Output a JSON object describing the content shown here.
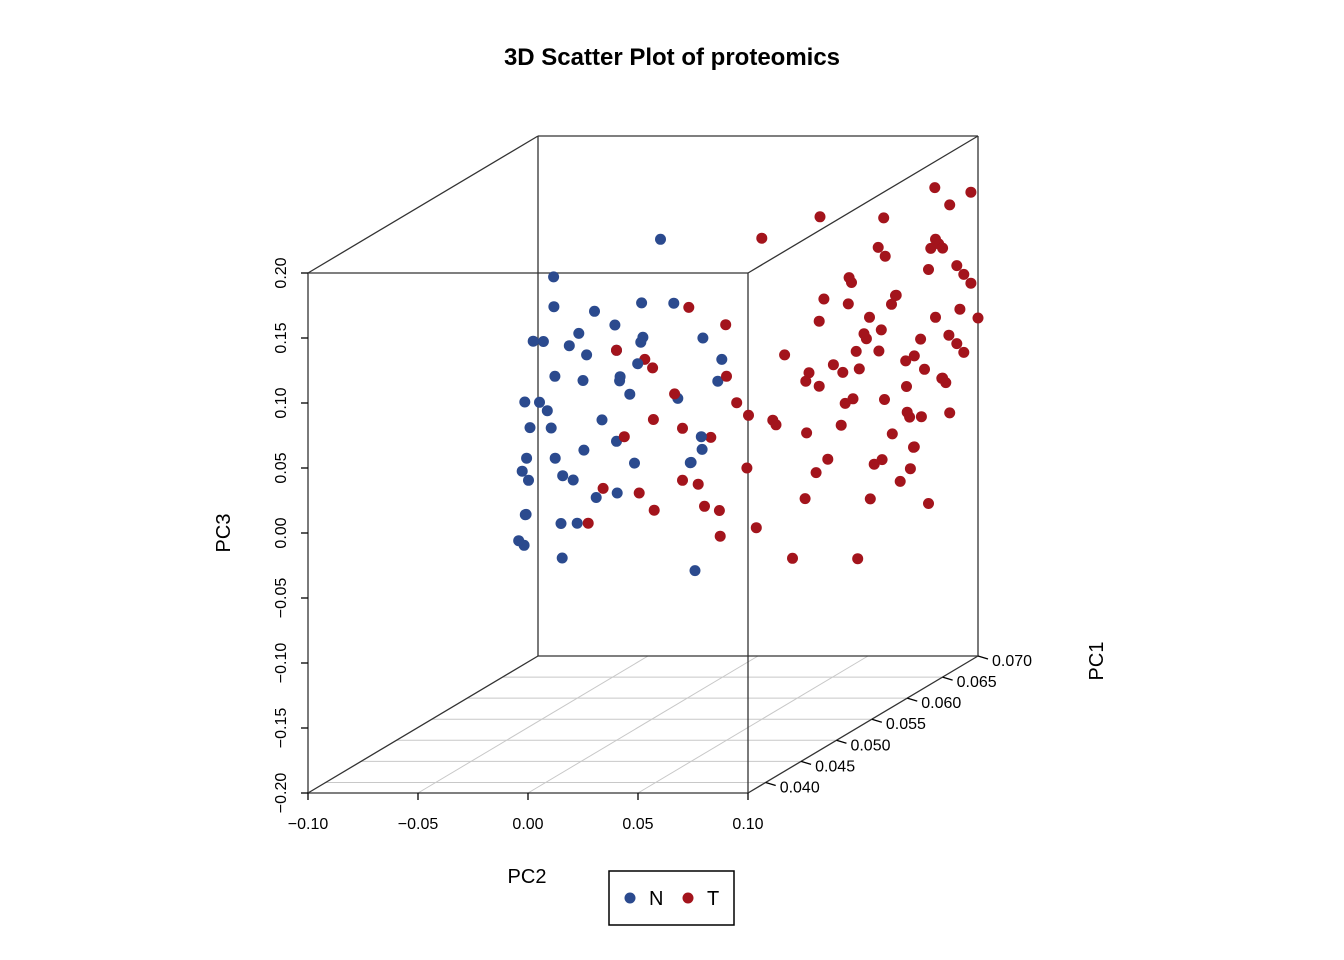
{
  "chart_data": {
    "type": "scatter",
    "title": "3D Scatter Plot of proteomics",
    "xlabel": "PC2",
    "ylabel": "PC1",
    "zlabel": "PC3",
    "xlim": [
      -0.1,
      0.1
    ],
    "ylim": [
      0.0375,
      0.07
    ],
    "zlim": [
      -0.2,
      0.2
    ],
    "x_ticks": [
      "−0.10",
      "−0.05",
      "0.00",
      "0.05",
      "0.10"
    ],
    "x_tick_values": [
      -0.1,
      -0.05,
      0.0,
      0.05,
      0.1
    ],
    "y_ticks": [
      "0.040",
      "0.045",
      "0.050",
      "0.055",
      "0.060",
      "0.065",
      "0.070"
    ],
    "y_tick_values": [
      0.04,
      0.045,
      0.05,
      0.055,
      0.06,
      0.065,
      0.07
    ],
    "z_ticks": [
      "−0.20",
      "−0.15",
      "−0.10",
      "−0.05",
      "0.00",
      "0.05",
      "0.10",
      "0.15",
      "0.20"
    ],
    "z_tick_values": [
      -0.2,
      -0.15,
      -0.1,
      -0.05,
      0.0,
      0.05,
      0.1,
      0.15,
      0.2
    ],
    "grid": "floor",
    "legend_position": "bottom-center",
    "series": [
      {
        "name": "N",
        "color": "#2b4a8e",
        "points": [
          [
            -0.025,
            0.064,
            0.14
          ],
          [
            -0.02,
            0.056,
            0.1
          ],
          [
            -0.035,
            0.052,
            0.15
          ],
          [
            -0.03,
            0.049,
            0.11
          ],
          [
            -0.028,
            0.05,
            0.08
          ],
          [
            -0.025,
            0.048,
            0.06
          ],
          [
            -0.02,
            0.047,
            0.05
          ],
          [
            -0.015,
            0.046,
            0.03
          ],
          [
            -0.04,
            0.05,
            0.0
          ],
          [
            -0.035,
            0.048,
            -0.02
          ],
          [
            -0.03,
            0.046,
            0.02
          ],
          [
            -0.025,
            0.045,
            -0.01
          ],
          [
            -0.042,
            0.05,
            -0.05
          ],
          [
            -0.038,
            0.048,
            -0.04
          ],
          [
            -0.022,
            0.049,
            -0.03
          ],
          [
            -0.018,
            0.048,
            0.01
          ],
          [
            -0.013,
            0.052,
            0.04
          ],
          [
            -0.01,
            0.055,
            0.05
          ],
          [
            -0.005,
            0.052,
            0.07
          ],
          [
            -0.005,
            0.055,
            0.09
          ],
          [
            0.0,
            0.05,
            0.1
          ],
          [
            0.005,
            0.052,
            0.13
          ],
          [
            0.01,
            0.055,
            0.12
          ],
          [
            0.02,
            0.056,
            0.09
          ],
          [
            0.03,
            0.055,
            0.06
          ],
          [
            0.035,
            0.054,
            0.08
          ],
          [
            0.04,
            0.048,
            0.02
          ],
          [
            0.045,
            0.048,
            0.04
          ],
          [
            0.05,
            0.045,
            0.03
          ],
          [
            0.055,
            0.045,
            0.04
          ],
          [
            -0.015,
            0.048,
            0.11
          ],
          [
            -0.01,
            0.05,
            0.13
          ],
          [
            -0.02,
            0.044,
            0.06
          ],
          [
            -0.025,
            0.046,
            0.12
          ],
          [
            -0.03,
            0.054,
            0.1
          ],
          [
            -0.032,
            0.047,
            0.07
          ],
          [
            -0.012,
            0.049,
            0.08
          ],
          [
            -0.008,
            0.053,
            0.07
          ],
          [
            0.0,
            0.053,
            0.08
          ],
          [
            -0.018,
            0.051,
            0.02
          ],
          [
            0.005,
            0.051,
            0.01
          ],
          [
            0.01,
            0.047,
            0.0
          ],
          [
            0.055,
            0.044,
            -0.05
          ],
          [
            -0.015,
            0.047,
            -0.05
          ],
          [
            -0.01,
            0.047,
            0.01
          ],
          [
            -0.005,
            0.046,
            -0.02
          ],
          [
            -0.028,
            0.046,
            0.03
          ],
          [
            -0.035,
            0.05,
            0.06
          ],
          [
            0.012,
            0.05,
            0.11
          ],
          [
            -0.022,
            0.048,
            0.14
          ],
          [
            0.0,
            0.05,
            0.03
          ],
          [
            -0.006,
            0.049,
            -0.01
          ],
          [
            -0.02,
            0.052,
            0.09
          ],
          [
            0.015,
            0.054,
            0.05
          ]
        ]
      },
      {
        "name": "T",
        "color": "#a3141c",
        "points": [
          [
            0.0,
            0.05,
            0.1
          ],
          [
            0.01,
            0.052,
            0.08
          ],
          [
            0.02,
            0.049,
            0.05
          ],
          [
            0.03,
            0.05,
            0.04
          ],
          [
            0.04,
            0.053,
            0.11
          ],
          [
            0.05,
            0.05,
            0.08
          ],
          [
            0.06,
            0.05,
            0.05
          ],
          [
            0.07,
            0.055,
            0.06
          ],
          [
            0.08,
            0.052,
            0.03
          ],
          [
            0.09,
            0.054,
            0.07
          ],
          [
            0.1,
            0.056,
            0.08
          ],
          [
            0.08,
            0.058,
            0.13
          ],
          [
            0.07,
            0.061,
            0.1
          ],
          [
            0.06,
            0.06,
            0.04
          ],
          [
            0.05,
            0.057,
            0.02
          ],
          [
            0.04,
            0.05,
            -0.02
          ],
          [
            0.03,
            0.046,
            -0.01
          ],
          [
            0.01,
            0.045,
            0.01
          ],
          [
            0.0,
            0.046,
            -0.02
          ],
          [
            0.02,
            0.047,
            0.0
          ],
          [
            0.06,
            0.046,
            -0.03
          ],
          [
            0.08,
            0.05,
            -0.06
          ],
          [
            0.1,
            0.053,
            -0.07
          ],
          [
            0.1,
            0.06,
            0.02
          ],
          [
            0.1,
            0.063,
            0.12
          ],
          [
            0.1,
            0.066,
            0.16
          ],
          [
            0.09,
            0.06,
            0.14
          ],
          [
            0.09,
            0.057,
            0.09
          ],
          [
            0.08,
            0.055,
            0.0
          ],
          [
            0.07,
            0.048,
            -0.03
          ],
          [
            0.05,
            0.049,
            -0.02
          ],
          [
            0.03,
            0.05,
            0.0
          ],
          [
            0.01,
            0.048,
            0.04
          ],
          [
            0.0,
            0.054,
            0.08
          ],
          [
            0.02,
            0.054,
            0.12
          ],
          [
            0.05,
            0.055,
            0.17
          ],
          [
            0.07,
            0.057,
            0.18
          ],
          [
            0.09,
            0.059,
            0.15
          ],
          [
            0.1,
            0.061,
            0.06
          ],
          [
            0.1,
            0.065,
            0.03
          ],
          [
            0.09,
            0.064,
            -0.02
          ],
          [
            0.08,
            0.061,
            -0.05
          ],
          [
            0.06,
            0.058,
            -0.04
          ],
          [
            0.04,
            0.056,
            -0.01
          ],
          [
            0.02,
            0.052,
            0.06
          ],
          [
            0.03,
            0.054,
            0.02
          ],
          [
            0.05,
            0.046,
            0.01
          ],
          [
            0.07,
            0.052,
            0.09
          ],
          [
            0.08,
            0.059,
            0.07
          ],
          [
            0.1,
            0.068,
            0.1
          ],
          [
            0.1,
            0.067,
            0.05
          ],
          [
            0.1,
            0.064,
            0.08
          ],
          [
            0.095,
            0.066,
            0.13
          ],
          [
            0.1,
            0.069,
            0.09
          ],
          [
            0.1,
            0.07,
            0.06
          ],
          [
            0.09,
            0.068,
            0.02
          ],
          [
            0.085,
            0.065,
            0.0
          ],
          [
            0.095,
            0.062,
            -0.03
          ],
          [
            0.1,
            0.063,
            -0.06
          ],
          [
            0.08,
            0.066,
            0.04
          ],
          [
            0.085,
            0.063,
            0.1
          ],
          [
            0.095,
            0.06,
            0.11
          ],
          [
            0.075,
            0.062,
            0.07
          ],
          [
            0.07,
            0.06,
            0.01
          ],
          [
            0.065,
            0.058,
            -0.02
          ],
          [
            0.085,
            0.057,
            0.04
          ],
          [
            0.075,
            0.056,
            0.12
          ],
          [
            0.1,
            0.064,
            0.14
          ],
          [
            0.09,
            0.067,
            0.17
          ],
          [
            0.1,
            0.069,
            0.16
          ],
          [
            0.095,
            0.058,
            -0.01
          ],
          [
            0.1,
            0.059,
            -0.03
          ],
          [
            0.08,
            0.063,
            0.02
          ],
          [
            0.09,
            0.065,
            0.06
          ],
          [
            0.1,
            0.066,
            0.0
          ],
          [
            0.07,
            0.064,
            0.08
          ],
          [
            0.06,
            0.062,
            0.05
          ],
          [
            0.085,
            0.061,
            0.08
          ],
          [
            0.095,
            0.064,
            0.04
          ],
          [
            0.1,
            0.062,
            0.01
          ],
          [
            0.09,
            0.061,
            0.0
          ],
          [
            0.075,
            0.059,
            0.03
          ],
          [
            0.065,
            0.057,
            0.06
          ],
          [
            0.055,
            0.055,
            0.03
          ],
          [
            0.045,
            0.053,
            0.05
          ],
          [
            0.1,
            0.067,
            0.11
          ],
          [
            0.095,
            0.069,
            0.07
          ],
          [
            0.1,
            0.065,
            0.13
          ],
          [
            0.085,
            0.068,
            0.12
          ],
          [
            0.08,
            0.064,
            0.09
          ],
          [
            0.07,
            0.066,
            0.15
          ],
          [
            0.09,
            0.063,
            0.03
          ],
          [
            0.1,
            0.061,
            -0.01
          ],
          [
            0.085,
            0.06,
            -0.02
          ],
          [
            0.075,
            0.061,
            0.05
          ],
          [
            0.065,
            0.063,
            0.11
          ],
          [
            0.06,
            0.06,
            0.09
          ],
          [
            0.095,
            0.067,
            0.02
          ],
          [
            0.1,
            0.068,
            0.04
          ],
          [
            0.09,
            0.069,
            0.05
          ]
        ]
      }
    ],
    "legend": [
      {
        "label": "N",
        "color": "#2b4a8e"
      },
      {
        "label": "T",
        "color": "#a3141c"
      }
    ]
  }
}
